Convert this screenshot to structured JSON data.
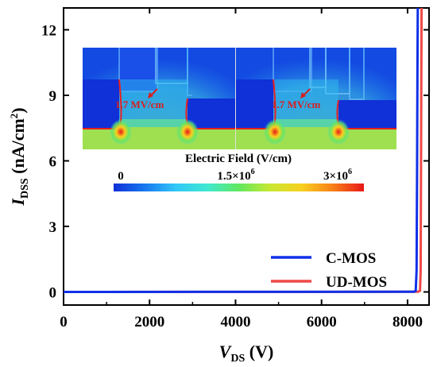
{
  "chart_data": {
    "type": "line",
    "xlabel_main": "V",
    "xlabel_sub": "DS",
    "xlabel_unit": " (V)",
    "ylabel_main": "I",
    "ylabel_sub": "DSS",
    "ylabel_unit_pre": " (nA/cm",
    "ylabel_unit_sup": "2",
    "ylabel_unit_post": ")",
    "xlim": [
      0,
      8500
    ],
    "ylim": [
      -0.6,
      13
    ],
    "x_ticks": [
      0,
      2000,
      4000,
      6000,
      8000
    ],
    "x_tick_labels": [
      "0",
      "2000",
      "4000",
      "6000",
      "8000"
    ],
    "y_ticks": [
      0,
      3,
      6,
      9,
      12
    ],
    "y_tick_labels": [
      "0",
      "3",
      "6",
      "9",
      "12"
    ],
    "series": [
      {
        "name": "C-MOS",
        "color": "#1030e8",
        "points": [
          [
            0,
            0
          ],
          [
            8150,
            0.01
          ],
          [
            8190,
            0.05
          ],
          [
            8210,
            1
          ],
          [
            8220,
            5
          ],
          [
            8230,
            10
          ],
          [
            8238,
            13
          ]
        ]
      },
      {
        "name": "UD-MOS",
        "color": "#f04848",
        "points": [
          [
            0,
            0
          ],
          [
            8250,
            0.01
          ],
          [
            8290,
            0.06
          ],
          [
            8305,
            1
          ],
          [
            8312,
            5
          ],
          [
            8320,
            10
          ],
          [
            8326,
            13
          ]
        ]
      }
    ],
    "legend_position": "bottom-right",
    "inset": {
      "annotation_left": "1.7 MV/cm",
      "annotation_right": "1.7 MV/cm",
      "colorbar_title": "Electric Field (V/cm)",
      "colorbar_label_min": "0",
      "colorbar_label_mid": "1.5×10",
      "colorbar_label_mid_exp": "6",
      "colorbar_label_max": "3×10",
      "colorbar_label_max_exp": "6",
      "colorbar_colors": [
        "#1030d8",
        "#1878f0",
        "#30c8f8",
        "#40e8d0",
        "#60e860",
        "#c8e830",
        "#f8d020",
        "#f88018",
        "#e81818"
      ]
    }
  }
}
